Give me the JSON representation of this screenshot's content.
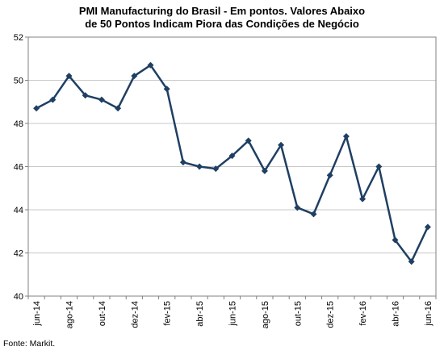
{
  "title_line1": "PMI Manufacturing do Brasil - Em pontos. Valores Abaixo",
  "title_line2": "de 50 Pontos Indicam Piora das Condições de Negócio",
  "source": "Fonte: Markit.",
  "colors": {
    "series": "#1f3f63",
    "axis": "#808080",
    "grid": "#c8c8c8"
  },
  "chart_data": {
    "type": "line",
    "title": "PMI Manufacturing do Brasil - Em pontos. Valores Abaixo de 50 Pontos Indicam Piora das Condições de Negócio",
    "xlabel": "",
    "ylabel": "",
    "ylim": [
      40,
      52
    ],
    "yticks": [
      40,
      42,
      44,
      46,
      48,
      50,
      52
    ],
    "grid": "horizontal",
    "x": [
      "jun-14",
      "jul-14",
      "ago-14",
      "set-14",
      "out-14",
      "nov-14",
      "dez-14",
      "jan-15",
      "fev-15",
      "mar-15",
      "abr-15",
      "mai-15",
      "jun-15",
      "jul-15",
      "ago-15",
      "set-15",
      "out-15",
      "nov-15",
      "dez-15",
      "jan-16",
      "fev-16",
      "mar-16",
      "abr-16",
      "mai-16",
      "jun-16"
    ],
    "tick_labels": [
      "jun-14",
      "ago-14",
      "out-14",
      "dez-14",
      "fev-15",
      "abr-15",
      "jun-15",
      "ago-15",
      "out-15",
      "dez-15",
      "fev-16",
      "abr-16",
      "jun-16"
    ],
    "series": [
      {
        "values": [
          48.7,
          49.1,
          50.2,
          49.3,
          49.1,
          48.7,
          50.2,
          50.7,
          49.6,
          46.2,
          46.0,
          45.9,
          46.5,
          47.2,
          45.8,
          47.0,
          44.1,
          43.8,
          45.6,
          47.4,
          44.5,
          46.0,
          42.6,
          41.6,
          43.2
        ]
      }
    ]
  }
}
